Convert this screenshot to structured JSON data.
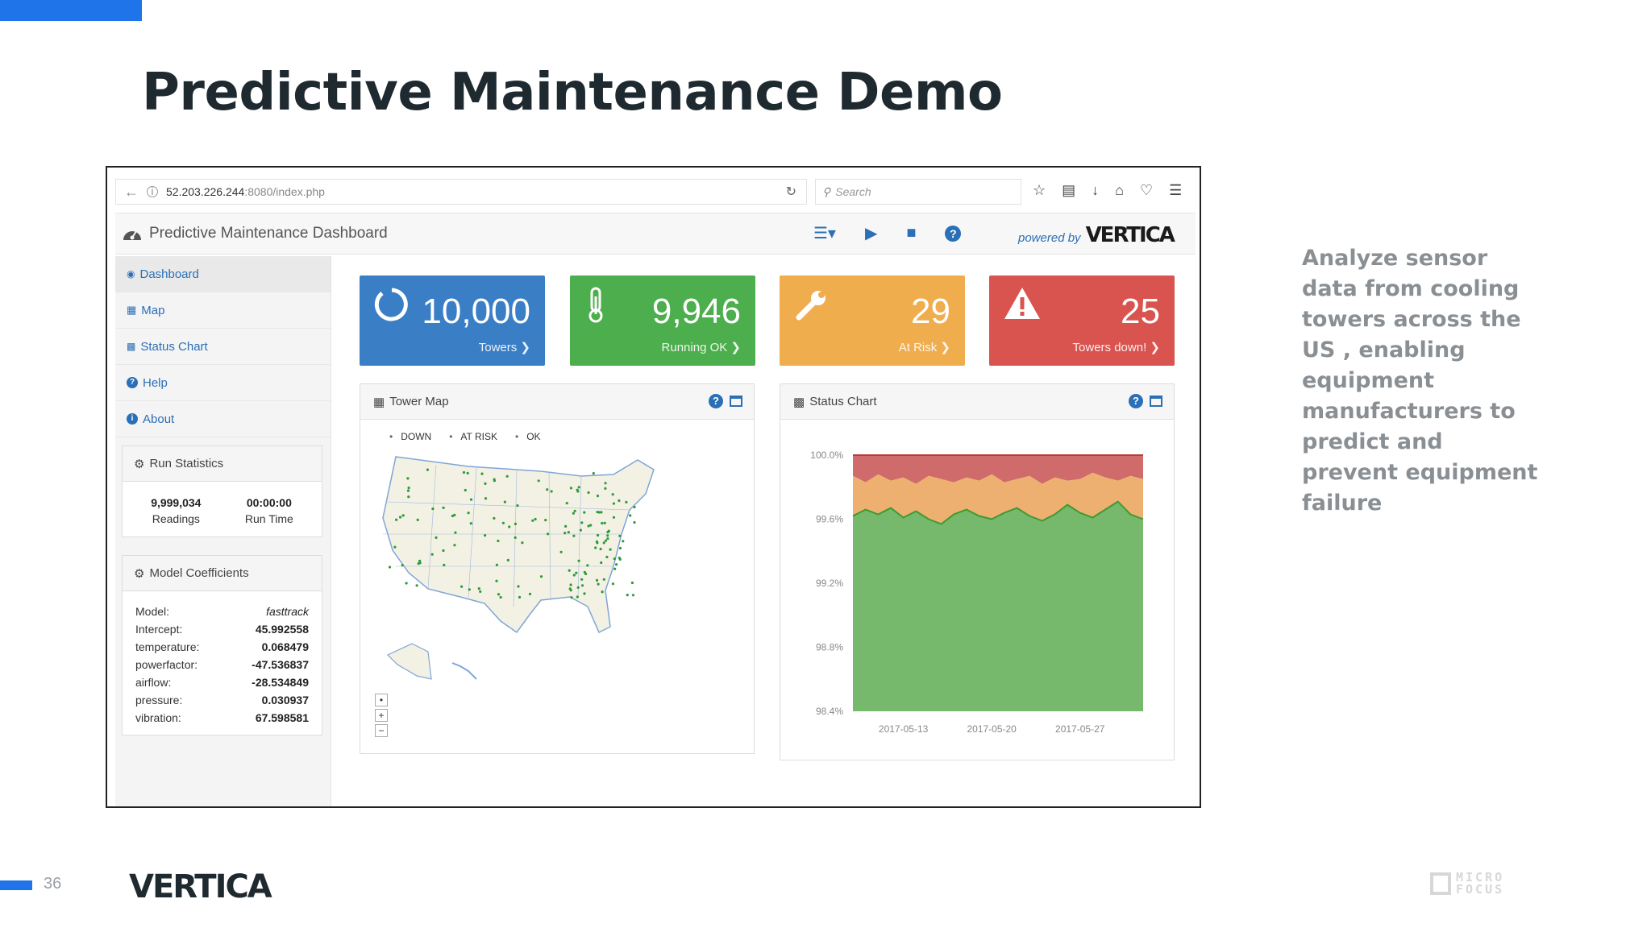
{
  "slide": {
    "title": "Predictive Maintenance Demo",
    "description": "Analyze sensor data from cooling towers across the US , enabling equipment manufacturers to predict and prevent equipment failure",
    "page_number": "36",
    "footer_logo": "VERTICA",
    "micro_focus_line1": "MICRO",
    "micro_focus_line2": "FOCUS",
    "accent_color": "#1e74e8"
  },
  "browser": {
    "url_host": "52.203.226.244",
    "url_path": ":8080/index.php",
    "search_placeholder": "Search",
    "icons": [
      "back-icon",
      "info-icon",
      "reload-icon",
      "search-icon",
      "star-icon",
      "clipboard-icon",
      "download-icon",
      "home-icon",
      "pocket-icon",
      "menu-icon"
    ]
  },
  "app": {
    "title": "Predictive Maintenance Dashboard",
    "powered_by": "powered by",
    "powered_logo": "VERTICA",
    "toolbar_icons": [
      "sliders-icon",
      "play-icon",
      "stop-icon",
      "help-icon"
    ]
  },
  "sidebar": {
    "items": [
      {
        "label": "Dashboard",
        "icon": "dashboard-icon"
      },
      {
        "label": "Map",
        "icon": "map-icon"
      },
      {
        "label": "Status Chart",
        "icon": "bar-chart-icon"
      },
      {
        "label": "Help",
        "icon": "help-icon"
      },
      {
        "label": "About",
        "icon": "info-icon"
      }
    ],
    "run_statistics": {
      "title": "Run Statistics",
      "readings_value": "9,999,034",
      "readings_label": "Readings",
      "runtime_value": "00:00:00",
      "runtime_label": "Run Time"
    },
    "model_coefficients": {
      "title": "Model Coefficients",
      "rows": [
        {
          "name": "Model:",
          "value": "fasttrack"
        },
        {
          "name": "Intercept:",
          "value": "45.992558"
        },
        {
          "name": "temperature:",
          "value": "0.068479"
        },
        {
          "name": "powerfactor:",
          "value": "-47.536837"
        },
        {
          "name": "airflow:",
          "value": "-28.534849"
        },
        {
          "name": "pressure:",
          "value": "0.030937"
        },
        {
          "name": "vibration:",
          "value": "67.598581"
        }
      ]
    }
  },
  "tiles": [
    {
      "value": "10,000",
      "label": "Towers",
      "color": "#3a7ec6",
      "icon": "circle-notch-icon"
    },
    {
      "value": "9,946",
      "label": "Running OK",
      "color": "#4cae4c",
      "icon": "thermometer-icon"
    },
    {
      "value": "29",
      "label": "At Risk",
      "color": "#f0ad4e",
      "icon": "wrench-icon"
    },
    {
      "value": "25",
      "label": "Towers down!",
      "color": "#d9534f",
      "icon": "warning-icon"
    }
  ],
  "tower_map": {
    "title": "Tower Map",
    "legend": [
      "DOWN",
      "AT RISK",
      "OK"
    ],
    "zoom": [
      "•",
      "+",
      "−"
    ]
  },
  "status_chart": {
    "title": "Status Chart"
  },
  "chart_data": {
    "type": "area",
    "title": "Status Chart",
    "xlabel": "",
    "ylabel": "",
    "ylim": [
      98.4,
      100.0
    ],
    "yticks": [
      "100.0%",
      "99.6%",
      "99.2%",
      "98.8%",
      "98.4%"
    ],
    "xticks": [
      "2017-05-13",
      "2017-05-20",
      "2017-05-27"
    ],
    "x_range": [
      "2017-05-09",
      "2017-06-01"
    ],
    "grid": false,
    "series": [
      {
        "color": "#d06b6b",
        "values": [
          100.0,
          100.0,
          100.0,
          100.0,
          100.0,
          100.0,
          100.0,
          100.0,
          100.0,
          100.0,
          100.0,
          100.0,
          100.0,
          100.0,
          100.0,
          100.0,
          100.0,
          100.0,
          100.0,
          100.0,
          100.0,
          100.0,
          100.0,
          100.0
        ]
      },
      {
        "color": "#eeb070",
        "values": [
          99.87,
          99.83,
          99.88,
          99.84,
          99.86,
          99.82,
          99.87,
          99.85,
          99.83,
          99.86,
          99.84,
          99.88,
          99.83,
          99.85,
          99.87,
          99.82,
          99.86,
          99.84,
          99.85,
          99.89,
          99.86,
          99.84,
          99.87,
          99.85
        ]
      },
      {
        "color": "#76b96c",
        "values": [
          99.62,
          99.66,
          99.63,
          99.67,
          99.61,
          99.65,
          99.6,
          99.57,
          99.63,
          99.66,
          99.62,
          99.6,
          99.64,
          99.67,
          99.62,
          99.59,
          99.63,
          99.69,
          99.64,
          99.61,
          99.66,
          99.71,
          99.63,
          99.6
        ]
      }
    ]
  }
}
